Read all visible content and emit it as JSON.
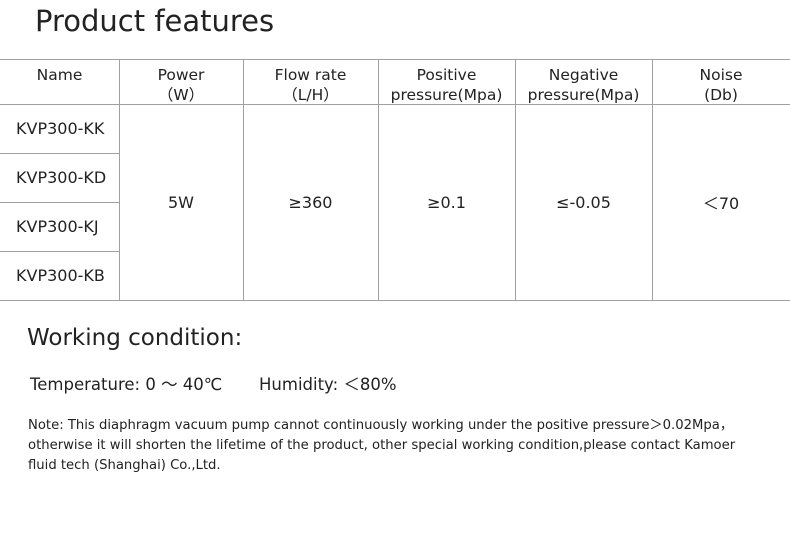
{
  "title": "Product features",
  "table": {
    "headers": [
      [
        "Name"
      ],
      [
        "Power",
        "（W）"
      ],
      [
        "Flow rate",
        "（L/H）"
      ],
      [
        "Positive",
        "pressure(Mpa)"
      ],
      [
        "Negative",
        "pressure(Mpa)"
      ],
      [
        "Noise",
        "(Db)"
      ]
    ],
    "models": [
      "KVP300-KK",
      "KVP300-KD",
      "KVP300-KJ",
      "KVP300-KB"
    ],
    "shared": [
      "5W",
      "≥360",
      "≥0.1",
      "≤-0.05",
      "＜70"
    ]
  },
  "working": {
    "heading": "Working condition:",
    "temperature": "Temperature: 0 ～ 40℃",
    "humidity": "Humidity: ＜80%"
  },
  "note": "Note: This diaphragm vacuum pump cannot continuously working under the positive pressure＞0.02Mpa，otherwise it will shorten the lifetime of the product, other special working condition,please contact Kamoer fluid tech (Shanghai) Co.,Ltd."
}
